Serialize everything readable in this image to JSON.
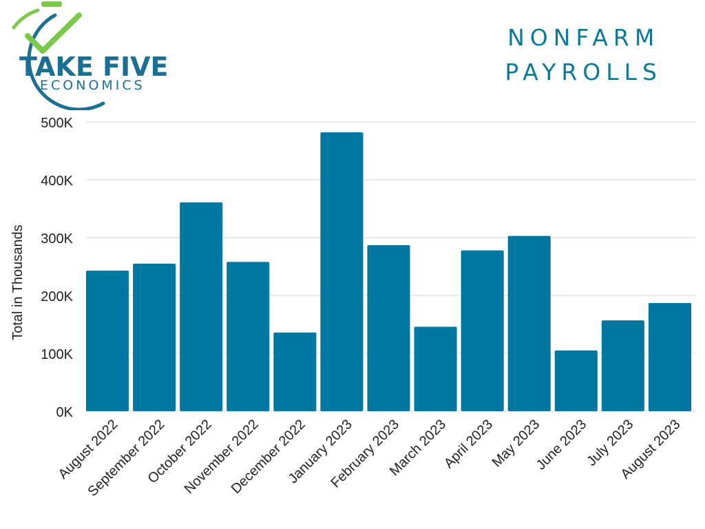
{
  "logo": {
    "name": "TAKE FIVE",
    "tagline": "ECONOMICS",
    "colors": {
      "teal": "#1b6f93",
      "green": "#7bc84a"
    }
  },
  "title_lines": [
    "NONFARM",
    "PAYROLLS"
  ],
  "chart_data": {
    "type": "bar",
    "categories": [
      "August 2022",
      "September 2022",
      "October 2022",
      "November 2022",
      "December 2022",
      "January 2023",
      "February 2023",
      "March 2023",
      "April 2023",
      "May 2023",
      "June 2023",
      "July 2023",
      "August 2023"
    ],
    "values": [
      243,
      255,
      361,
      258,
      136,
      482,
      287,
      146,
      278,
      303,
      105,
      157,
      187
    ],
    "ylabel": "Total in Thousands",
    "ylim": [
      0,
      500
    ],
    "yticks": [
      0,
      100,
      200,
      300,
      400,
      500
    ],
    "ytick_labels": [
      "0K",
      "100K",
      "200K",
      "300K",
      "400K",
      "500K"
    ],
    "grid": true,
    "bar_color": "#0077a0"
  }
}
